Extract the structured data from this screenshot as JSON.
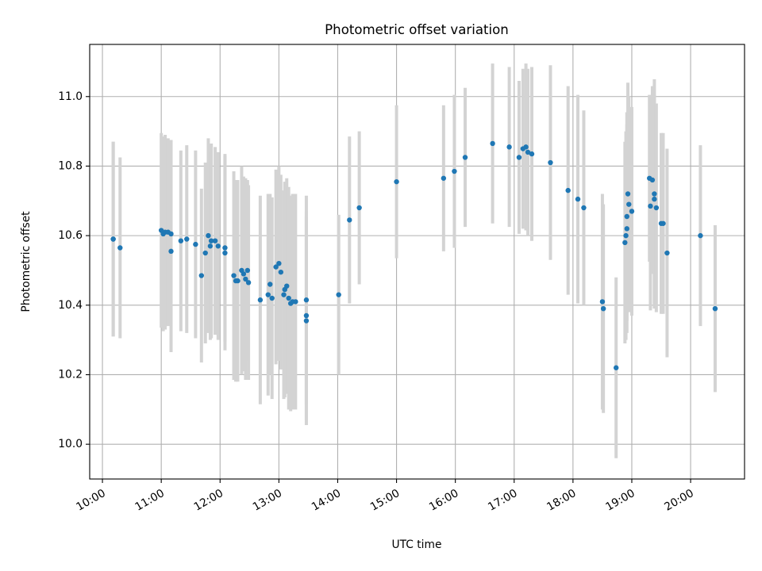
{
  "chart_data": {
    "type": "scatter",
    "title": "Photometric offset variation",
    "xlabel": "UTC time",
    "ylabel": "Photometric offset",
    "x_ticks": [
      "10:00",
      "11:00",
      "12:00",
      "13:00",
      "14:00",
      "15:00",
      "16:00",
      "17:00",
      "18:00",
      "19:00",
      "20:00"
    ],
    "y_ticks": [
      "10.0",
      "10.2",
      "10.4",
      "10.6",
      "10.8",
      "11.0"
    ],
    "xlim": [
      "09:47",
      "20:55"
    ],
    "ylim": [
      9.9,
      11.15
    ],
    "grid": true,
    "colors": {
      "marker": "#1f77b4",
      "errorbar": "#d3d3d3",
      "grid": "#b0b0b0"
    },
    "series": [
      {
        "points": [
          {
            "x": "10:11",
            "y": 10.59,
            "err": 0.28
          },
          {
            "x": "10:11",
            "y": 10.59,
            "err": 0.28
          },
          {
            "x": "10:18",
            "y": 10.565,
            "err": 0.26
          },
          {
            "x": "11:00",
            "y": 10.615,
            "err": 0.28
          },
          {
            "x": "11:02",
            "y": 10.605,
            "err": 0.28
          },
          {
            "x": "11:04",
            "y": 10.61,
            "err": 0.28
          },
          {
            "x": "11:07",
            "y": 10.61,
            "err": 0.27
          },
          {
            "x": "11:10",
            "y": 10.605,
            "err": 0.27
          },
          {
            "x": "11:10",
            "y": 10.555,
            "err": 0.29
          },
          {
            "x": "11:20",
            "y": 10.585,
            "err": 0.26
          },
          {
            "x": "11:26",
            "y": 10.59,
            "err": 0.27
          },
          {
            "x": "11:35",
            "y": 10.575,
            "err": 0.27
          },
          {
            "x": "11:41",
            "y": 10.485,
            "err": 0.25
          },
          {
            "x": "11:45",
            "y": 10.55,
            "err": 0.26
          },
          {
            "x": "11:48",
            "y": 10.6,
            "err": 0.28
          },
          {
            "x": "11:50",
            "y": 10.57,
            "err": 0.27
          },
          {
            "x": "11:51",
            "y": 10.585,
            "err": 0.28
          },
          {
            "x": "11:55",
            "y": 10.585,
            "err": 0.27
          },
          {
            "x": "11:58",
            "y": 10.57,
            "err": 0.27
          },
          {
            "x": "12:05",
            "y": 10.565,
            "err": 0.27
          },
          {
            "x": "12:05",
            "y": 10.55,
            "err": 0.28
          },
          {
            "x": "12:14",
            "y": 10.485,
            "err": 0.3
          },
          {
            "x": "12:16",
            "y": 10.47,
            "err": 0.29
          },
          {
            "x": "12:18",
            "y": 10.47,
            "err": 0.29
          },
          {
            "x": "12:22",
            "y": 10.5,
            "err": 0.3
          },
          {
            "x": "12:24",
            "y": 10.49,
            "err": 0.28
          },
          {
            "x": "12:26",
            "y": 10.475,
            "err": 0.29
          },
          {
            "x": "12:28",
            "y": 10.5,
            "err": 0.26
          },
          {
            "x": "12:29",
            "y": 10.465,
            "err": 0.28
          },
          {
            "x": "12:41",
            "y": 10.415,
            "err": 0.3
          },
          {
            "x": "12:49",
            "y": 10.43,
            "err": 0.29
          },
          {
            "x": "12:51",
            "y": 10.46,
            "err": 0.26
          },
          {
            "x": "12:53",
            "y": 10.42,
            "err": 0.29
          },
          {
            "x": "12:57",
            "y": 10.51,
            "err": 0.28
          },
          {
            "x": "13:00",
            "y": 10.52,
            "err": 0.28
          },
          {
            "x": "13:02",
            "y": 10.495,
            "err": 0.28
          },
          {
            "x": "13:05",
            "y": 10.43,
            "err": 0.3
          },
          {
            "x": "13:06",
            "y": 10.445,
            "err": 0.31
          },
          {
            "x": "13:08",
            "y": 10.455,
            "err": 0.31
          },
          {
            "x": "13:10",
            "y": 10.42,
            "err": 0.32
          },
          {
            "x": "13:12",
            "y": 10.405,
            "err": 0.31
          },
          {
            "x": "13:14",
            "y": 10.41,
            "err": 0.31
          },
          {
            "x": "13:17",
            "y": 10.41,
            "err": 0.31
          },
          {
            "x": "13:28",
            "y": 10.37,
            "err": 0.3
          },
          {
            "x": "13:28",
            "y": 10.355,
            "err": 0.3
          },
          {
            "x": "13:28",
            "y": 10.415,
            "err": 0.3
          },
          {
            "x": "14:01",
            "y": 10.43,
            "err": 0.23
          },
          {
            "x": "14:12",
            "y": 10.645,
            "err": 0.24
          },
          {
            "x": "14:22",
            "y": 10.68,
            "err": 0.22
          },
          {
            "x": "15:00",
            "y": 10.755,
            "err": 0.22
          },
          {
            "x": "15:48",
            "y": 10.765,
            "err": 0.21
          },
          {
            "x": "15:59",
            "y": 10.785,
            "err": 0.22
          },
          {
            "x": "16:10",
            "y": 10.825,
            "err": 0.2
          },
          {
            "x": "16:38",
            "y": 10.865,
            "err": 0.23
          },
          {
            "x": "16:55",
            "y": 10.855,
            "err": 0.23
          },
          {
            "x": "17:05",
            "y": 10.825,
            "err": 0.22
          },
          {
            "x": "17:09",
            "y": 10.85,
            "err": 0.23
          },
          {
            "x": "17:12",
            "y": 10.855,
            "err": 0.24
          },
          {
            "x": "17:14",
            "y": 10.84,
            "err": 0.24
          },
          {
            "x": "17:18",
            "y": 10.835,
            "err": 0.25
          },
          {
            "x": "17:37",
            "y": 10.81,
            "err": 0.28
          },
          {
            "x": "17:55",
            "y": 10.73,
            "err": 0.3
          },
          {
            "x": "18:05",
            "y": 10.705,
            "err": 0.3
          },
          {
            "x": "18:11",
            "y": 10.68,
            "err": 0.28
          },
          {
            "x": "18:30",
            "y": 10.41,
            "err": 0.31
          },
          {
            "x": "18:31",
            "y": 10.39,
            "err": 0.3
          },
          {
            "x": "18:44",
            "y": 10.22,
            "err": 0.26
          },
          {
            "x": "18:53",
            "y": 10.58,
            "err": 0.29
          },
          {
            "x": "18:54",
            "y": 10.6,
            "err": 0.3
          },
          {
            "x": "18:55",
            "y": 10.62,
            "err": 0.3
          },
          {
            "x": "18:55",
            "y": 10.655,
            "err": 0.3
          },
          {
            "x": "18:56",
            "y": 10.72,
            "err": 0.32
          },
          {
            "x": "18:57",
            "y": 10.69,
            "err": 0.31
          },
          {
            "x": "19:00",
            "y": 10.67,
            "err": 0.3
          },
          {
            "x": "19:18",
            "y": 10.765,
            "err": 0.24
          },
          {
            "x": "19:19",
            "y": 10.685,
            "err": 0.3
          },
          {
            "x": "19:21",
            "y": 10.76,
            "err": 0.27
          },
          {
            "x": "19:23",
            "y": 10.72,
            "err": 0.33
          },
          {
            "x": "19:23",
            "y": 10.705,
            "err": 0.3
          },
          {
            "x": "19:25",
            "y": 10.68,
            "err": 0.3
          },
          {
            "x": "19:30",
            "y": 10.635,
            "err": 0.26
          },
          {
            "x": "19:32",
            "y": 10.635,
            "err": 0.26
          },
          {
            "x": "19:36",
            "y": 10.55,
            "err": 0.3
          },
          {
            "x": "20:10",
            "y": 10.6,
            "err": 0.26
          },
          {
            "x": "20:25",
            "y": 10.39,
            "err": 0.24
          }
        ]
      }
    ]
  }
}
